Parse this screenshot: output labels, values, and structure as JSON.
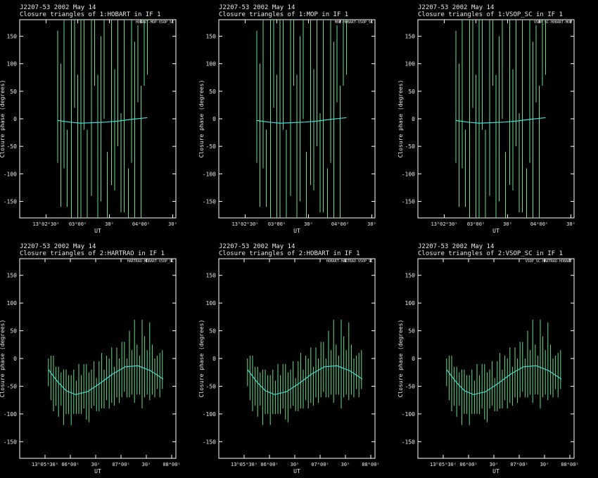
{
  "chart_data": [
    {
      "type": "errorbar",
      "title": "J2207-53  2002 May 14",
      "subtitle": "Closure triangles of 1:HOBART in IF 1",
      "corner_label": "HOBART-MOP-VSOP_SC",
      "xlabel": "UT",
      "ylabel": "Closure phase   (degrees)",
      "x": [
        46961,
        46964,
        46967,
        46970,
        46974,
        46977,
        46980,
        46983,
        46986,
        46989,
        46993,
        46996,
        46999,
        47002,
        47005,
        47008,
        47012,
        47015,
        47018,
        47021,
        47024,
        47028,
        47031,
        47034,
        47037,
        47040,
        47043,
        47046
      ],
      "values": [
        40,
        -30,
        60,
        -90,
        20,
        100,
        -60,
        10,
        80,
        -100,
        30,
        120,
        -50,
        0,
        90,
        -120,
        40,
        -20,
        70,
        -80,
        20,
        -140,
        60,
        -30,
        100,
        -60,
        120,
        130
      ],
      "errors": [
        120,
        130,
        150,
        70,
        200,
        80,
        140,
        190,
        100,
        80,
        170,
        60,
        130,
        150,
        90,
        60,
        160,
        110,
        120,
        90,
        190,
        50,
        140,
        170,
        70,
        120,
        60,
        50
      ],
      "color": "#66dd88",
      "model": {
        "x": [
          46961,
          46972,
          46983,
          46995,
          47007,
          47019,
          47031,
          47046
        ],
        "values": [
          -3,
          -6,
          -8,
          -7,
          -6,
          -4,
          -1,
          2
        ],
        "color": "#44dddd"
      },
      "xlim": [
        46925,
        47073
      ],
      "ylim": [
        -180,
        180
      ],
      "xticks": [
        {
          "value": 46950,
          "label": "13ʰ02ᵐ30ˢ"
        },
        {
          "value": 46980,
          "label": "03ᵐ00ˢ"
        },
        {
          "value": 47010,
          "label": "30ˢ"
        },
        {
          "value": 47040,
          "label": "04ᵐ00ˢ"
        },
        {
          "value": 47070,
          "label": "30ˢ"
        }
      ],
      "yticks": [
        -150,
        -100,
        -50,
        0,
        50,
        100,
        150
      ]
    },
    {
      "type": "errorbar",
      "title": "J2207-53  2002 May 14",
      "subtitle": "Closure triangles of 1:MOP in IF 1",
      "corner_label": "MOP-HOBART-VSOP_SC",
      "xlabel": "UT",
      "ylabel": "Closure phase   (degrees)",
      "x": [
        46961,
        46964,
        46967,
        46970,
        46974,
        46977,
        46980,
        46983,
        46986,
        46989,
        46993,
        46996,
        46999,
        47002,
        47005,
        47008,
        47012,
        47015,
        47018,
        47021,
        47024,
        47028,
        47031,
        47034,
        47037,
        47040,
        47043,
        47046
      ],
      "values": [
        40,
        -30,
        60,
        -90,
        20,
        100,
        -60,
        10,
        80,
        -100,
        30,
        120,
        -50,
        0,
        90,
        -120,
        40,
        -20,
        70,
        -80,
        20,
        -140,
        60,
        -30,
        100,
        -60,
        120,
        130
      ],
      "errors": [
        120,
        130,
        150,
        70,
        200,
        80,
        140,
        190,
        100,
        80,
        170,
        60,
        130,
        150,
        90,
        60,
        160,
        110,
        120,
        90,
        190,
        50,
        140,
        170,
        70,
        120,
        60,
        50
      ],
      "color": "#66dd88",
      "model": {
        "x": [
          46961,
          46972,
          46983,
          46995,
          47007,
          47019,
          47031,
          47046
        ],
        "values": [
          -3,
          -6,
          -8,
          -7,
          -6,
          -4,
          -1,
          2
        ],
        "color": "#44dddd"
      },
      "xlim": [
        46925,
        47073
      ],
      "ylim": [
        -180,
        180
      ],
      "xticks": [
        {
          "value": 46950,
          "label": "13ʰ02ᵐ30ˢ"
        },
        {
          "value": 46980,
          "label": "03ᵐ00ˢ"
        },
        {
          "value": 47010,
          "label": "30ˢ"
        },
        {
          "value": 47040,
          "label": "04ᵐ00ˢ"
        },
        {
          "value": 47070,
          "label": "30ˢ"
        }
      ],
      "yticks": [
        -150,
        -100,
        -50,
        0,
        50,
        100,
        150
      ]
    },
    {
      "type": "errorbar",
      "title": "J2207-53  2002 May 14",
      "subtitle": "Closure triangles of 1:VSOP_SC in IF 1",
      "corner_label": "VSOP_SC-HOBART-MOP",
      "xlabel": "UT",
      "ylabel": "Closure phase   (degrees)",
      "x": [
        46961,
        46964,
        46967,
        46970,
        46974,
        46977,
        46980,
        46983,
        46986,
        46989,
        46993,
        46996,
        46999,
        47002,
        47005,
        47008,
        47012,
        47015,
        47018,
        47021,
        47024,
        47028,
        47031,
        47034,
        47037,
        47040,
        47043,
        47046
      ],
      "values": [
        40,
        -30,
        60,
        -90,
        20,
        100,
        -60,
        10,
        80,
        -100,
        30,
        120,
        -50,
        0,
        90,
        -120,
        40,
        -20,
        70,
        -80,
        20,
        -140,
        60,
        -30,
        100,
        -60,
        120,
        130
      ],
      "errors": [
        120,
        130,
        150,
        70,
        200,
        80,
        140,
        190,
        100,
        80,
        170,
        60,
        130,
        150,
        90,
        60,
        160,
        110,
        120,
        90,
        190,
        50,
        140,
        170,
        70,
        120,
        60,
        50
      ],
      "color": "#66dd88",
      "model": {
        "x": [
          46961,
          46972,
          46983,
          46995,
          47007,
          47019,
          47031,
          47046
        ],
        "values": [
          -3,
          -6,
          -8,
          -7,
          -6,
          -4,
          -1,
          2
        ],
        "color": "#44dddd"
      },
      "xlim": [
        46925,
        47073
      ],
      "ylim": [
        -180,
        180
      ],
      "xticks": [
        {
          "value": 46950,
          "label": "13ʰ02ᵐ30ˢ"
        },
        {
          "value": 46980,
          "label": "03ᵐ00ˢ"
        },
        {
          "value": 47010,
          "label": "30ˢ"
        },
        {
          "value": 47040,
          "label": "04ᵐ00ˢ"
        },
        {
          "value": 47070,
          "label": "30ˢ"
        }
      ],
      "yticks": [
        -150,
        -100,
        -50,
        0,
        50,
        100,
        150
      ]
    },
    {
      "type": "errorbar",
      "title": "J2207-53  2002 May 14",
      "subtitle": "Closure triangles of 2:HARTRAO in IF 1",
      "corner_label": "HARTRAO-HOBART-VSOP_SC",
      "xlabel": "UT",
      "ylabel": "Closure phase   (degrees)",
      "x": [
        47134,
        47137,
        47140,
        47143,
        47146,
        47149,
        47152,
        47155,
        47158,
        47161,
        47164,
        47167,
        47170,
        47173,
        47176,
        47179,
        47182,
        47185,
        47188,
        47191,
        47194,
        47197,
        47200,
        47203,
        47206,
        47209,
        47212,
        47215,
        47218,
        47221,
        47224,
        47227,
        47230,
        47233,
        47236,
        47239,
        47242,
        47245,
        47248,
        47251,
        47254,
        47257,
        47260,
        47263,
        47266,
        47269
      ],
      "values": [
        -25,
        -35,
        -45,
        -50,
        -60,
        -55,
        -70,
        -60,
        -65,
        -75,
        -60,
        -70,
        -55,
        -65,
        -50,
        -60,
        -70,
        -55,
        -45,
        -65,
        -50,
        -40,
        -55,
        -35,
        -45,
        -30,
        -50,
        -25,
        -40,
        -20,
        -15,
        -35,
        -10,
        -25,
        -5,
        -20,
        -30,
        -10,
        -15,
        -25,
        -5,
        -20,
        -35,
        -25,
        -30,
        -20
      ],
      "errors": [
        25,
        40,
        50,
        35,
        45,
        30,
        50,
        40,
        35,
        45,
        40,
        30,
        45,
        35,
        40,
        50,
        45,
        35,
        40,
        30,
        45,
        50,
        35,
        40,
        45,
        50,
        35,
        45,
        40,
        50,
        45,
        35,
        60,
        40,
        75,
        45,
        35,
        80,
        55,
        40,
        70,
        45,
        35,
        30,
        40,
        35
      ],
      "color": "#66dd88",
      "model": {
        "x": [
          47134,
          47145,
          47155,
          47166,
          47180,
          47195,
          47210,
          47225,
          47240,
          47255,
          47270
        ],
        "values": [
          -20,
          -42,
          -58,
          -65,
          -60,
          -45,
          -28,
          -15,
          -13,
          -22,
          -37
        ],
        "color": "#44dddd"
      },
      "xlim": [
        47100,
        47285
      ],
      "ylim": [
        -180,
        180
      ],
      "xticks": [
        {
          "value": 47130,
          "label": "13ʰ05ᵐ30ˢ"
        },
        {
          "value": 47160,
          "label": "06ᵐ00ˢ"
        },
        {
          "value": 47190,
          "label": "30ˢ"
        },
        {
          "value": 47220,
          "label": "07ᵐ00ˢ"
        },
        {
          "value": 47250,
          "label": "30ˢ"
        },
        {
          "value": 47280,
          "label": "08ᵐ00ˢ"
        }
      ],
      "yticks": [
        -150,
        -100,
        -50,
        0,
        50,
        100,
        150
      ]
    },
    {
      "type": "errorbar",
      "title": "J2207-53  2002 May 14",
      "subtitle": "Closure triangles of 2:HOBART in IF 1",
      "corner_label": "HOBART-HARTRAO-VSOP_SC",
      "xlabel": "UT",
      "ylabel": "Closure phase   (degrees)",
      "x": [
        47134,
        47137,
        47140,
        47143,
        47146,
        47149,
        47152,
        47155,
        47158,
        47161,
        47164,
        47167,
        47170,
        47173,
        47176,
        47179,
        47182,
        47185,
        47188,
        47191,
        47194,
        47197,
        47200,
        47203,
        47206,
        47209,
        47212,
        47215,
        47218,
        47221,
        47224,
        47227,
        47230,
        47233,
        47236,
        47239,
        47242,
        47245,
        47248,
        47251,
        47254,
        47257,
        47260,
        47263,
        47266,
        47269
      ],
      "values": [
        -25,
        -35,
        -45,
        -50,
        -60,
        -55,
        -70,
        -60,
        -65,
        -75,
        -60,
        -70,
        -55,
        -65,
        -50,
        -60,
        -70,
        -55,
        -45,
        -65,
        -50,
        -40,
        -55,
        -35,
        -45,
        -30,
        -50,
        -25,
        -40,
        -20,
        -15,
        -35,
        -10,
        -25,
        -5,
        -20,
        -30,
        -10,
        -15,
        -25,
        -5,
        -20,
        -35,
        -25,
        -30,
        -20
      ],
      "errors": [
        25,
        40,
        50,
        35,
        45,
        30,
        50,
        40,
        35,
        45,
        40,
        30,
        45,
        35,
        40,
        50,
        45,
        35,
        40,
        30,
        45,
        50,
        35,
        40,
        45,
        50,
        35,
        45,
        40,
        50,
        45,
        35,
        60,
        40,
        75,
        45,
        35,
        80,
        55,
        40,
        70,
        45,
        35,
        30,
        40,
        35
      ],
      "color": "#66dd88",
      "model": {
        "x": [
          47134,
          47145,
          47155,
          47166,
          47180,
          47195,
          47210,
          47225,
          47240,
          47255,
          47270
        ],
        "values": [
          -20,
          -42,
          -58,
          -65,
          -60,
          -45,
          -28,
          -15,
          -13,
          -22,
          -37
        ],
        "color": "#44dddd"
      },
      "xlim": [
        47100,
        47285
      ],
      "ylim": [
        -180,
        180
      ],
      "xticks": [
        {
          "value": 47130,
          "label": "13ʰ05ᵐ30ˢ"
        },
        {
          "value": 47160,
          "label": "06ᵐ00ˢ"
        },
        {
          "value": 47190,
          "label": "30ˢ"
        },
        {
          "value": 47220,
          "label": "07ᵐ00ˢ"
        },
        {
          "value": 47250,
          "label": "30ˢ"
        },
        {
          "value": 47280,
          "label": "08ᵐ00ˢ"
        }
      ],
      "yticks": [
        -150,
        -100,
        -50,
        0,
        50,
        100,
        150
      ]
    },
    {
      "type": "errorbar",
      "title": "J2207-53  2002 May 14",
      "subtitle": "Closure triangles of 2:VSOP_SC in IF 1",
      "corner_label": "VSOP_SC-HARTRAO-HOBART",
      "xlabel": "UT",
      "ylabel": "Closure phase   (degrees)",
      "x": [
        47134,
        47137,
        47140,
        47143,
        47146,
        47149,
        47152,
        47155,
        47158,
        47161,
        47164,
        47167,
        47170,
        47173,
        47176,
        47179,
        47182,
        47185,
        47188,
        47191,
        47194,
        47197,
        47200,
        47203,
        47206,
        47209,
        47212,
        47215,
        47218,
        47221,
        47224,
        47227,
        47230,
        47233,
        47236,
        47239,
        47242,
        47245,
        47248,
        47251,
        47254,
        47257,
        47260,
        47263,
        47266,
        47269
      ],
      "values": [
        -25,
        -35,
        -45,
        -50,
        -60,
        -55,
        -70,
        -60,
        -65,
        -75,
        -60,
        -70,
        -55,
        -65,
        -50,
        -60,
        -70,
        -55,
        -45,
        -65,
        -50,
        -40,
        -55,
        -35,
        -45,
        -30,
        -50,
        -25,
        -40,
        -20,
        -15,
        -35,
        -10,
        -25,
        -5,
        -20,
        -30,
        -10,
        -15,
        -25,
        -5,
        -20,
        -35,
        -25,
        -30,
        -20
      ],
      "errors": [
        25,
        40,
        50,
        35,
        45,
        30,
        50,
        40,
        35,
        45,
        40,
        30,
        45,
        35,
        40,
        50,
        45,
        35,
        40,
        30,
        45,
        50,
        35,
        40,
        45,
        50,
        35,
        45,
        40,
        50,
        45,
        35,
        60,
        40,
        75,
        45,
        35,
        80,
        55,
        40,
        70,
        45,
        35,
        30,
        40,
        35
      ],
      "color": "#66dd88",
      "model": {
        "x": [
          47134,
          47145,
          47155,
          47166,
          47180,
          47195,
          47210,
          47225,
          47240,
          47255,
          47270
        ],
        "values": [
          -20,
          -42,
          -58,
          -65,
          -60,
          -45,
          -28,
          -15,
          -13,
          -22,
          -37
        ],
        "color": "#44dddd"
      },
      "xlim": [
        47100,
        47285
      ],
      "ylim": [
        -180,
        180
      ],
      "xticks": [
        {
          "value": 47130,
          "label": "13ʰ05ᵐ30ˢ"
        },
        {
          "value": 47160,
          "label": "06ᵐ00ˢ"
        },
        {
          "value": 47190,
          "label": "30ˢ"
        },
        {
          "value": 47220,
          "label": "07ᵐ00ˢ"
        },
        {
          "value": 47250,
          "label": "30ˢ"
        },
        {
          "value": 47280,
          "label": "08ᵐ00ˢ"
        }
      ],
      "yticks": [
        -150,
        -100,
        -50,
        0,
        50,
        100,
        150
      ]
    }
  ]
}
